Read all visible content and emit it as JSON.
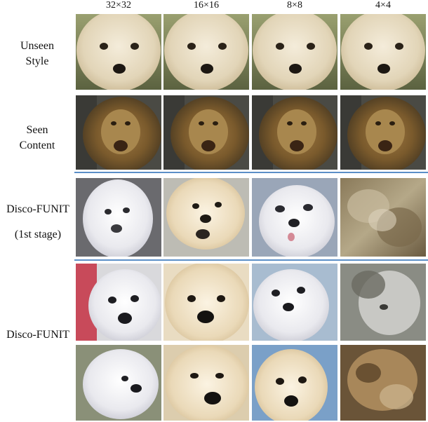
{
  "column_headers": [
    "32×32",
    "16×16",
    "8×8",
    "4×4"
  ],
  "row_labels": {
    "unseen_style": [
      "Unseen",
      "Style"
    ],
    "seen_content": [
      "Seen",
      "Content"
    ],
    "stage1": [
      "Disco-FUNIT",
      "(1st stage)"
    ],
    "final": "Disco-FUNIT"
  },
  "colors": {
    "separator": "#5b8fc7",
    "lion_fur": "#8a6a3a",
    "lion_bg": "#4a4a44",
    "dog_fur": "#e6ddc8",
    "style_bg": "#6b7048"
  }
}
